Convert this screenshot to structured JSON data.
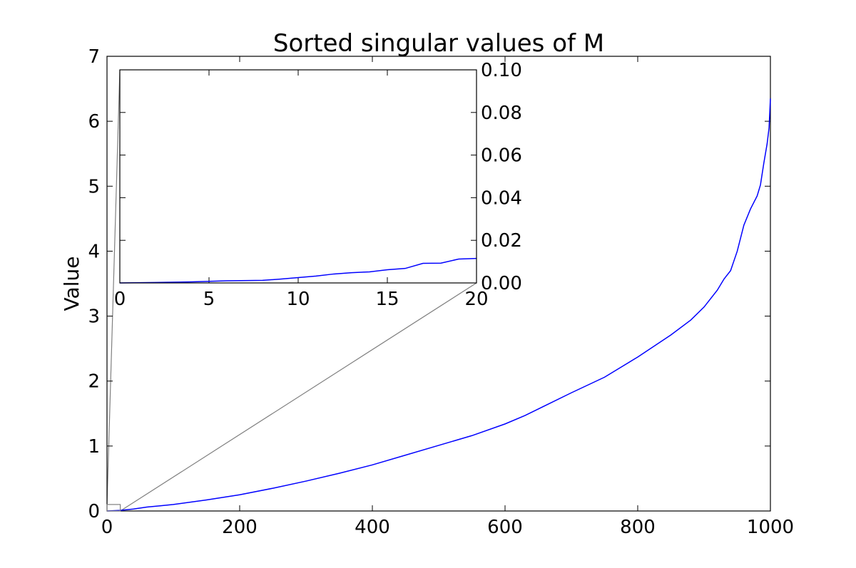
{
  "chart_data": [
    {
      "type": "line",
      "role": "main",
      "title": "Sorted singular values of M",
      "xlabel": "",
      "ylabel": "Value",
      "xlim": [
        0,
        1000
      ],
      "ylim": [
        0,
        7
      ],
      "xticks": [
        0,
        200,
        400,
        600,
        800,
        1000
      ],
      "xtick_labels": [
        "0",
        "200",
        "400",
        "600",
        "800",
        "1000"
      ],
      "yticks": [
        0,
        1,
        2,
        3,
        4,
        5,
        6,
        7
      ],
      "ytick_labels": [
        "0",
        "1",
        "2",
        "3",
        "4",
        "5",
        "6",
        "7"
      ],
      "grid": false,
      "color": "#0000ff",
      "series": [
        {
          "x": [
            0,
            20,
            40,
            60,
            80,
            100,
            150,
            200,
            250,
            300,
            350,
            400,
            450,
            500,
            550,
            600,
            630,
            650,
            700,
            750,
            800,
            850,
            880,
            900,
            920,
            930,
            940,
            950,
            960,
            970,
            980,
            985,
            990,
            995,
            998,
            1000
          ],
          "values": [
            0.0,
            0.01,
            0.03,
            0.06,
            0.08,
            0.1,
            0.17,
            0.25,
            0.35,
            0.46,
            0.58,
            0.71,
            0.86,
            1.01,
            1.16,
            1.34,
            1.47,
            1.57,
            1.82,
            2.06,
            2.37,
            2.71,
            2.94,
            3.14,
            3.4,
            3.57,
            3.7,
            4.0,
            4.4,
            4.65,
            4.85,
            5.02,
            5.35,
            5.65,
            5.9,
            6.35
          ]
        }
      ],
      "zoom_box": {
        "x": [
          0,
          20
        ],
        "y": [
          0,
          0.1
        ],
        "color": "#808080"
      }
    },
    {
      "type": "line",
      "role": "inset",
      "xlim": [
        0,
        20
      ],
      "ylim": [
        0,
        0.1
      ],
      "xticks": [
        0,
        5,
        10,
        15,
        20
      ],
      "xtick_labels": [
        "0",
        "5",
        "10",
        "15",
        "20"
      ],
      "yticks": [
        0,
        0.02,
        0.04,
        0.06,
        0.08,
        0.1
      ],
      "ytick_labels": [
        "0.00",
        "0.02",
        "0.04",
        "0.06",
        "0.08",
        "0.10"
      ],
      "ytick_side": "right",
      "grid": false,
      "color": "#0000ff",
      "series": [
        {
          "x": [
            0,
            2,
            4,
            6,
            8,
            9,
            10,
            11,
            12,
            13,
            14,
            15,
            16,
            17,
            18,
            19,
            20
          ],
          "values": [
            0.0,
            0.0002,
            0.0005,
            0.001,
            0.0012,
            0.0018,
            0.0025,
            0.0032,
            0.0042,
            0.0048,
            0.0052,
            0.0062,
            0.0068,
            0.0092,
            0.0093,
            0.0112,
            0.0115
          ]
        }
      ]
    }
  ]
}
